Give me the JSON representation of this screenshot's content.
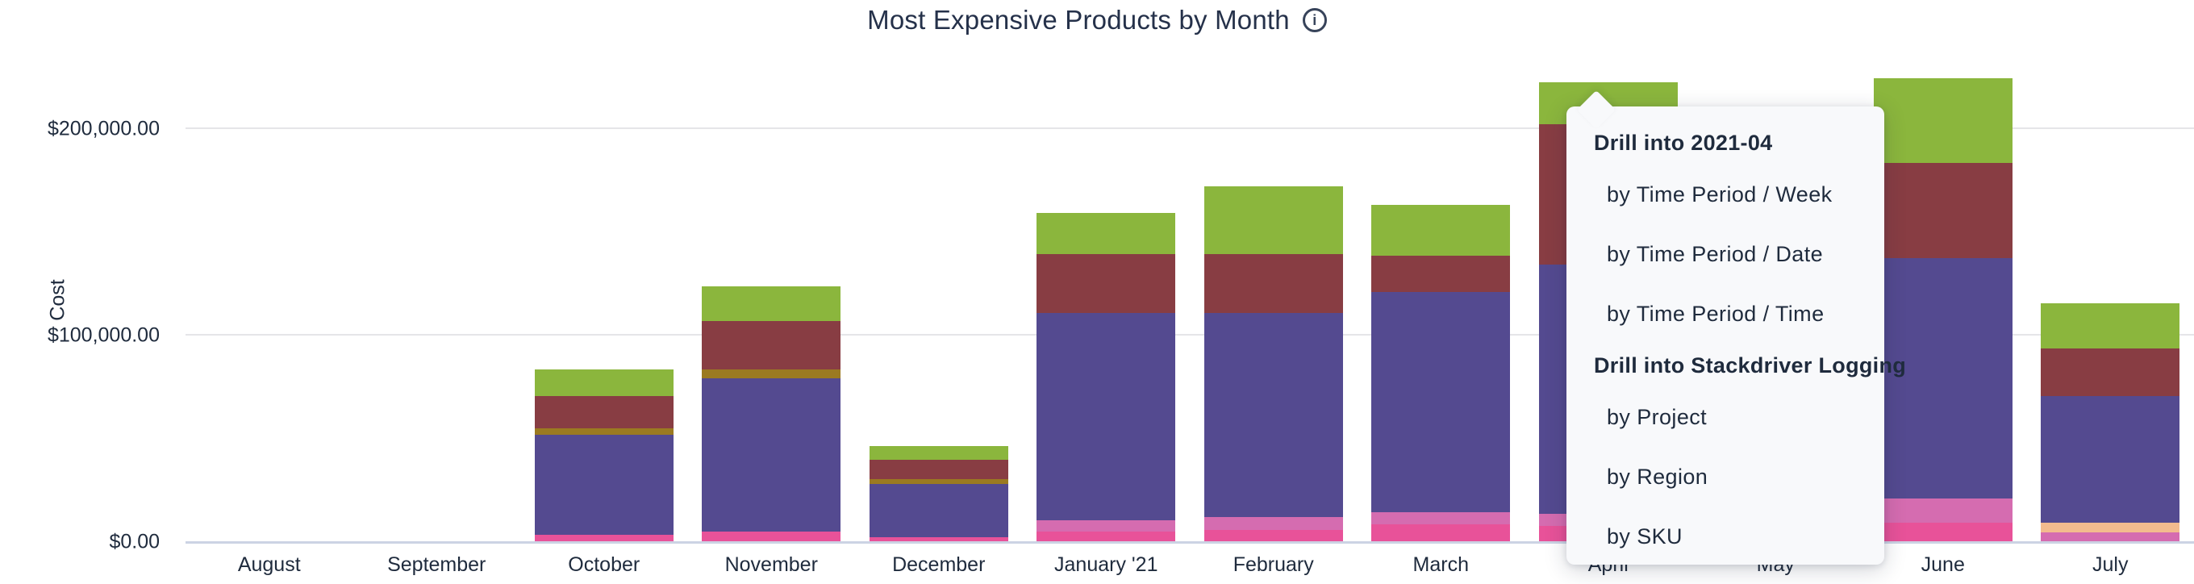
{
  "header": {
    "title": "Most Expensive Products by Month",
    "info_icon": "i"
  },
  "chart_data": {
    "type": "bar",
    "stacked": true,
    "title": "Most Expensive Products by Month",
    "xlabel": "",
    "ylabel": "Cost",
    "grid": "horizontal",
    "legend": "none",
    "ylim": [
      0,
      262000
    ],
    "y_ticks": [
      {
        "label": "$0.00",
        "value": 0
      },
      {
        "label": "$100,000.00",
        "value": 100000
      },
      {
        "label": "$200,000.00",
        "value": 200000
      }
    ],
    "categories": [
      "August",
      "September",
      "October",
      "November",
      "December",
      "January '21",
      "February",
      "March",
      "April",
      "May",
      "June",
      "July"
    ],
    "series": [
      {
        "name": "pink-segment",
        "color": "#e85299",
        "values": [
          0,
          0,
          3100,
          4700,
          2000,
          4700,
          5400,
          8200,
          7400,
          null,
          9000,
          0
        ]
      },
      {
        "name": "orchid-segment",
        "color": "#d56cb0",
        "values": [
          0,
          0,
          0,
          0,
          0,
          5500,
          6200,
          5800,
          5800,
          null,
          11700,
          4300
        ]
      },
      {
        "name": "orange-segment",
        "color": "#f3bb8e",
        "values": [
          0,
          0,
          0,
          0,
          0,
          0,
          0,
          0,
          0,
          null,
          0,
          4700
        ]
      },
      {
        "name": "purple-segment",
        "color": "#544a90",
        "values": [
          0,
          0,
          48600,
          74300,
          25800,
          100200,
          98800,
          106600,
          121000,
          null,
          116400,
          61300
        ]
      },
      {
        "name": "olive-segment",
        "color": "#9b7a21",
        "values": [
          0,
          0,
          3100,
          4300,
          2300,
          0,
          0,
          0,
          0,
          null,
          0,
          0
        ]
      },
      {
        "name": "maroon-segment",
        "color": "#883d43",
        "values": [
          0,
          0,
          15600,
          23300,
          9300,
          28800,
          28800,
          17900,
          67700,
          null,
          46100,
          23000
        ]
      },
      {
        "name": "green-segment",
        "color": "#8bb63d",
        "values": [
          0,
          0,
          12800,
          16700,
          6600,
          19800,
          32700,
          24500,
          20600,
          null,
          41000,
          21900
        ]
      }
    ],
    "totals_visible": {
      "October": 83200,
      "November": 123300,
      "December": 46000,
      "January '21": 159000,
      "February": 171900,
      "March": 163000,
      "April": 222500,
      "June": 224200,
      "July": 115200
    },
    "hidden_category_note": "May bar is covered by the drill menu"
  },
  "drill_menu": {
    "sections": [
      {
        "header": "Drill into 2021-04",
        "items": [
          "by Time Period / Week",
          "by Time Period / Date",
          "by Time Period / Time"
        ]
      },
      {
        "header": "Drill into Stackdriver Logging",
        "items": [
          "by Project",
          "by Region",
          "by SKU"
        ]
      }
    ]
  },
  "colors": {
    "text": "#1f2b3d",
    "gridline": "#e5e5e8",
    "axis_baseline": "#ccd3e4",
    "menu_background": "#f8f9fb"
  }
}
